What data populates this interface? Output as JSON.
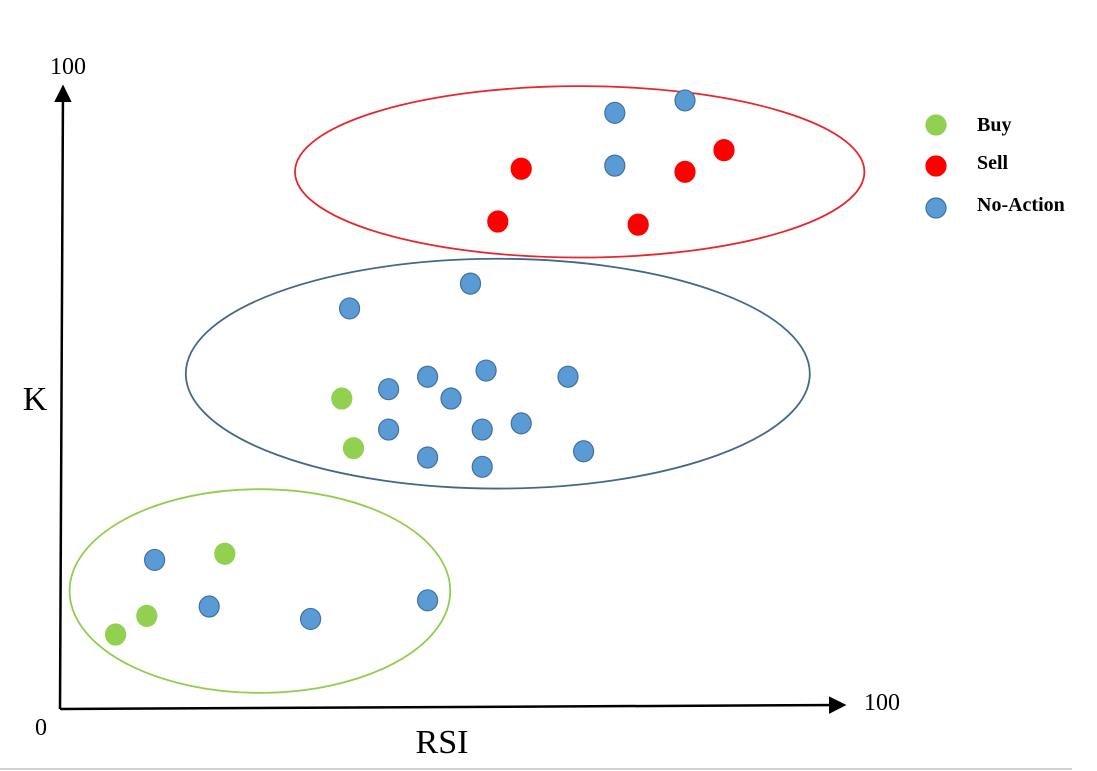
{
  "colors": {
    "buy": "#92d050",
    "sell": "#ff0000",
    "no_action": "#5b9bd5",
    "no_action_stroke": "#41719c",
    "buy_stroke": "#92d050",
    "sell_stroke": "#ff0000",
    "cluster_buy": "#8fce4f",
    "cluster_sell": "#e8262b",
    "cluster_no_action": "#41698f"
  },
  "chart_data": {
    "type": "scatter",
    "xlabel": "RSI",
    "ylabel": "K",
    "xlim": [
      0,
      100
    ],
    "ylim": [
      0,
      100
    ],
    "tick_labels": {
      "origin": "0",
      "x_max": "100",
      "y_max": "100"
    },
    "legend": {
      "position": "top-right",
      "entries": [
        {
          "key": "buy",
          "label": "Buy",
          "color": "#92d050"
        },
        {
          "key": "sell",
          "label": "Sell",
          "color": "#ff0000"
        },
        {
          "key": "no_action",
          "label": "No-Action",
          "color": "#5b9bd5"
        }
      ]
    },
    "series": [
      {
        "key": "buy",
        "points": [
          [
            7,
            12
          ],
          [
            11,
            15
          ],
          [
            21,
            25
          ],
          [
            36,
            50
          ],
          [
            37.5,
            42
          ]
        ]
      },
      {
        "key": "sell",
        "points": [
          [
            59,
            87
          ],
          [
            56,
            78.5
          ],
          [
            80,
            86.5
          ],
          [
            85,
            90
          ],
          [
            74,
            78
          ]
        ]
      },
      {
        "key": "no_action",
        "points": [
          [
            71,
            96
          ],
          [
            80,
            98
          ],
          [
            71,
            87.5
          ],
          [
            52.5,
            68.5
          ],
          [
            37,
            64.5
          ],
          [
            65,
            53.5
          ],
          [
            54.5,
            54.5
          ],
          [
            47,
            53.5
          ],
          [
            42,
            51.5
          ],
          [
            50,
            50
          ],
          [
            42,
            45
          ],
          [
            54,
            45
          ],
          [
            59,
            46
          ],
          [
            47,
            40.5
          ],
          [
            54,
            39
          ],
          [
            67,
            41.5
          ],
          [
            12,
            24
          ],
          [
            19,
            16.5
          ],
          [
            32,
            14.5
          ],
          [
            47,
            17.5
          ]
        ]
      }
    ],
    "clusters": [
      {
        "key": "sell",
        "center": [
          66.5,
          86.5
        ],
        "radii": [
          36.5,
          13.8
        ]
      },
      {
        "key": "no_action",
        "center": [
          56,
          54
        ],
        "radii": [
          40,
          18.5
        ]
      },
      {
        "key": "buy",
        "center": [
          25.5,
          19
        ],
        "radii": [
          24.4,
          16.4
        ]
      }
    ]
  }
}
